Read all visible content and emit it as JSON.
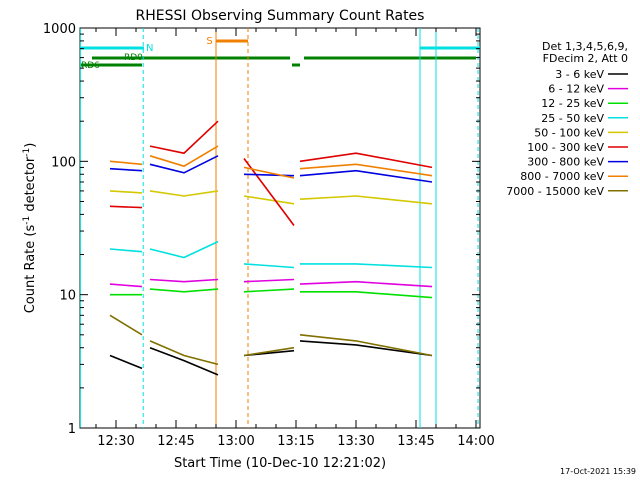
{
  "chart_data": {
    "type": "line",
    "title": "RHESSI Observing Summary Count Rates",
    "xlabel": "Start Time (10-Dec-10 12:21:02)",
    "ylabel_main": "Count Rate (s",
    "ylabel_sup1": "-1",
    "ylabel_mid": " detector",
    "ylabel_sup2": "-1",
    "ylabel_end": ")",
    "x_ticks": [
      "12:30",
      "12:45",
      "13:00",
      "13:15",
      "13:30",
      "13:45",
      "14:00"
    ],
    "x_tick_minutes": [
      0,
      15,
      30,
      45,
      60,
      75,
      90
    ],
    "y_scale": "log",
    "ylim": [
      1,
      1000
    ],
    "y_ticks": [
      "1",
      "10",
      "100",
      "1000"
    ],
    "y_tick_values": [
      1,
      10,
      100,
      1000
    ],
    "x_range_minutes": [
      -9,
      91
    ],
    "legend": {
      "header": [
        "Det 1,3,4,5,6,9,",
        "FDecim 2, Att 0"
      ],
      "entries": [
        {
          "label": "3 - 6 keV",
          "color": "#000000"
        },
        {
          "label": "6 - 12 keV",
          "color": "#e000e0"
        },
        {
          "label": "12 - 25 keV",
          "color": "#00e000"
        },
        {
          "label": "25 - 50 keV",
          "color": "#00e0e0"
        },
        {
          "label": "50 - 100 keV",
          "color": "#d4c800"
        },
        {
          "label": "100 - 300 keV",
          "color": "#e00000"
        },
        {
          "label": "300 - 800 keV",
          "color": "#0000e0"
        },
        {
          "label": "800 - 7000 keV",
          "color": "#f08000"
        },
        {
          "label": "7000 - 15000 keV",
          "color": "#807000"
        }
      ],
      "placement": "right"
    },
    "flag_labels": {
      "rd0": "RD0",
      "rd6": "RD6",
      "n": "N",
      "s": "S"
    },
    "segments_minutes": [
      [
        -1.5,
        6.5
      ],
      [
        8.5,
        25.5
      ],
      [
        32,
        44.5
      ],
      [
        46,
        79
      ]
    ],
    "series": [
      {
        "name": "3 - 6 keV",
        "color": "#000000",
        "values": [
          [
            -1.5,
            3.5
          ],
          [
            6.5,
            2.8
          ],
          [
            8.5,
            4
          ],
          [
            17,
            3.2
          ],
          [
            25.5,
            2.5
          ],
          [
            32,
            3.5
          ],
          [
            44.5,
            3.8
          ],
          [
            46,
            4.5
          ],
          [
            60,
            4.2
          ],
          [
            79,
            3.5
          ]
        ]
      },
      {
        "name": "6 - 12 keV",
        "color": "#e000e0",
        "values": [
          [
            -1.5,
            12
          ],
          [
            6.5,
            11.5
          ],
          [
            8.5,
            13
          ],
          [
            17,
            12.5
          ],
          [
            25.5,
            13
          ],
          [
            32,
            12.5
          ],
          [
            44.5,
            13
          ],
          [
            46,
            12
          ],
          [
            60,
            12.5
          ],
          [
            79,
            11.5
          ]
        ]
      },
      {
        "name": "12 - 25 keV",
        "color": "#00e000",
        "values": [
          [
            -1.5,
            10
          ],
          [
            6.5,
            10
          ],
          [
            8.5,
            11
          ],
          [
            17,
            10.5
          ],
          [
            25.5,
            11
          ],
          [
            32,
            10.5
          ],
          [
            44.5,
            11
          ],
          [
            46,
            10.5
          ],
          [
            60,
            10.5
          ],
          [
            79,
            9.5
          ]
        ]
      },
      {
        "name": "25 - 50 keV",
        "color": "#00e0e0",
        "values": [
          [
            -1.5,
            22
          ],
          [
            6.5,
            21
          ],
          [
            8.5,
            22
          ],
          [
            17,
            19
          ],
          [
            25.5,
            25
          ],
          [
            32,
            17
          ],
          [
            44.5,
            16
          ],
          [
            46,
            17
          ],
          [
            60,
            17
          ],
          [
            79,
            16
          ]
        ]
      },
      {
        "name": "50 - 100 keV",
        "color": "#d4c800",
        "values": [
          [
            -1.5,
            60
          ],
          [
            6.5,
            58
          ],
          [
            8.5,
            60
          ],
          [
            17,
            55
          ],
          [
            25.5,
            60
          ],
          [
            32,
            55
          ],
          [
            44.5,
            48
          ],
          [
            46,
            52
          ],
          [
            60,
            55
          ],
          [
            79,
            48
          ]
        ]
      },
      {
        "name": "100 - 300 keV",
        "color": "#e00000",
        "values": [
          [
            -1.5,
            46
          ],
          [
            6.5,
            45
          ],
          [
            8.5,
            130
          ],
          [
            17,
            115
          ],
          [
            25.5,
            200
          ],
          [
            32,
            105
          ],
          [
            44.5,
            33
          ],
          [
            46,
            100
          ],
          [
            60,
            115
          ],
          [
            79,
            90
          ]
        ]
      },
      {
        "name": "300 - 800 keV",
        "color": "#0000e0",
        "values": [
          [
            -1.5,
            88
          ],
          [
            6.5,
            85
          ],
          [
            8.5,
            95
          ],
          [
            17,
            82
          ],
          [
            25.5,
            110
          ],
          [
            32,
            80
          ],
          [
            44.5,
            78
          ],
          [
            46,
            78
          ],
          [
            60,
            85
          ],
          [
            79,
            70
          ]
        ]
      },
      {
        "name": "800 - 7000 keV",
        "color": "#f08000",
        "values": [
          [
            -1.5,
            100
          ],
          [
            6.5,
            95
          ],
          [
            8.5,
            110
          ],
          [
            17,
            92
          ],
          [
            25.5,
            130
          ],
          [
            32,
            90
          ],
          [
            44.5,
            75
          ],
          [
            46,
            88
          ],
          [
            60,
            95
          ],
          [
            79,
            78
          ]
        ]
      },
      {
        "name": "7000 - 15000 keV",
        "color": "#807000",
        "values": [
          [
            -1.5,
            7
          ],
          [
            6.5,
            5
          ],
          [
            8.5,
            4.5
          ],
          [
            17,
            3.5
          ],
          [
            25.5,
            3
          ],
          [
            32,
            3.5
          ],
          [
            44.5,
            4
          ],
          [
            46,
            5
          ],
          [
            60,
            4.5
          ],
          [
            79,
            3.5
          ]
        ]
      }
    ]
  },
  "timestamp": "17-Oct-2021 15:39"
}
